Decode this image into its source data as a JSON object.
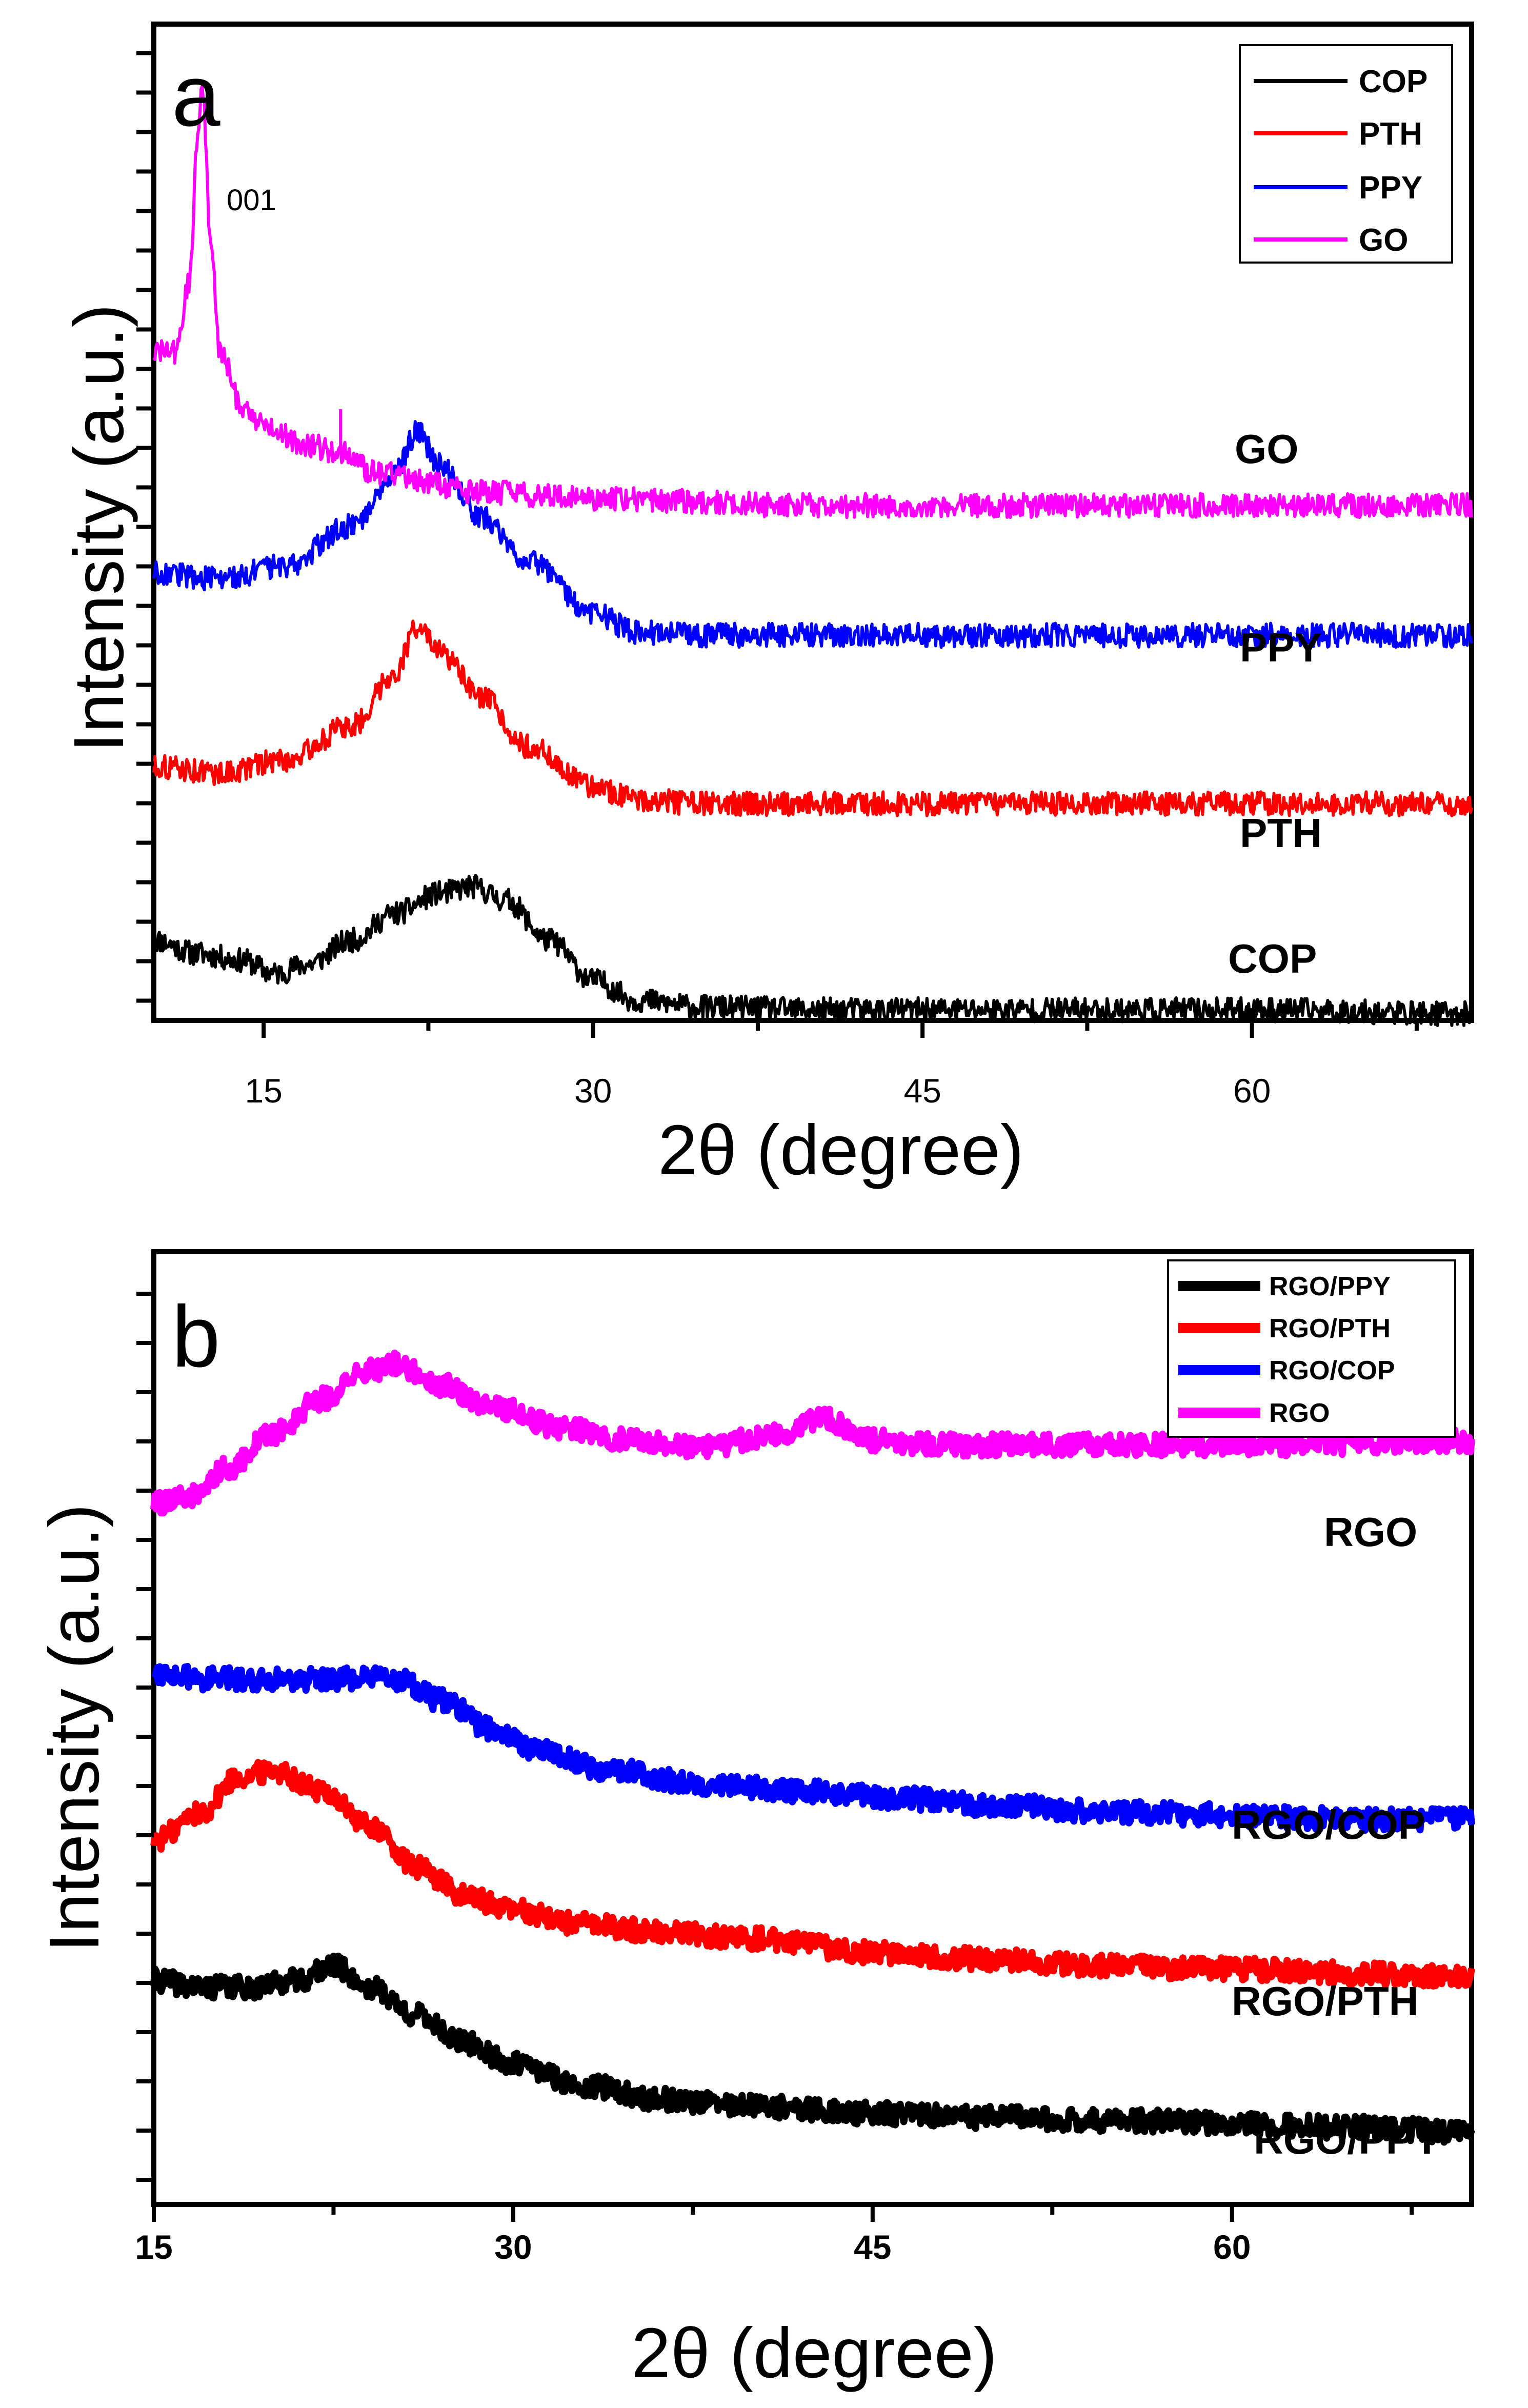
{
  "chart_data": [
    {
      "panel": "a",
      "type": "line",
      "xlabel": "2θ (degree)",
      "ylabel": "Intensity (a.u.)",
      "xlim": [
        10,
        70
      ],
      "xticks": [
        15,
        30,
        45,
        60
      ],
      "xtick_labels": [
        "15",
        "30",
        "45",
        "60"
      ],
      "legend_position": "top-right",
      "annotation": {
        "text": "001",
        "x": 12.1
      },
      "series": [
        {
          "name": "COP",
          "color": "#000000",
          "label": "COP",
          "x": [
            10,
            12,
            14,
            15.5,
            17,
            19,
            21,
            23,
            24.5,
            26,
            28,
            30,
            32,
            35,
            40,
            50,
            60,
            70
          ],
          "y": [
            0.6,
            0.5,
            0.45,
            0.35,
            0.42,
            0.6,
            0.8,
            0.95,
            1.0,
            0.9,
            0.6,
            0.3,
            0.15,
            0.1,
            0.08,
            0.08,
            0.08,
            0.05
          ]
        },
        {
          "name": "PTH",
          "color": "#ff0000",
          "label": "PTH",
          "x": [
            10,
            13,
            16,
            19,
            21,
            22,
            23,
            25,
            27,
            30,
            32,
            35,
            40,
            50,
            60,
            70
          ],
          "y": [
            1.9,
            1.85,
            1.95,
            2.2,
            2.6,
            2.95,
            2.75,
            2.4,
            2.05,
            1.75,
            1.65,
            1.62,
            1.62,
            1.62,
            1.62,
            1.62
          ]
        },
        {
          "name": "PPY",
          "color": "#0000ff",
          "label": "PPY",
          "x": [
            10,
            13,
            16,
            19,
            21,
            22,
            23,
            25,
            27,
            30,
            32,
            35,
            40,
            50,
            60,
            70
          ],
          "y": [
            3.35,
            3.3,
            3.4,
            3.7,
            4.1,
            4.4,
            4.15,
            3.75,
            3.45,
            3.05,
            2.9,
            2.88,
            2.88,
            2.88,
            2.88,
            2.88
          ]
        },
        {
          "name": "GO",
          "color": "#ff00ff",
          "label": "GO",
          "x": [
            10,
            11,
            11.6,
            12.0,
            12.2,
            12.6,
            13,
            14,
            15,
            17,
            18.5,
            20,
            25,
            30,
            40,
            50,
            60,
            70
          ],
          "y": [
            5.0,
            5.0,
            5.5,
            6.6,
            7.0,
            5.8,
            5.0,
            4.6,
            4.45,
            4.3,
            4.25,
            4.1,
            3.95,
            3.9,
            3.85,
            3.85,
            3.85,
            3.85
          ]
        }
      ]
    },
    {
      "panel": "b",
      "type": "line",
      "xlabel": "2θ (degree)",
      "ylabel": "Intensity (a.u.)",
      "xlim": [
        15,
        70
      ],
      "xticks": [
        15,
        30,
        45,
        60
      ],
      "xtick_labels": [
        "15",
        "30",
        "45",
        "60"
      ],
      "legend_position": "top-right",
      "series": [
        {
          "name": "RGO/PPY",
          "color": "#000000",
          "label": "RGO/PPY",
          "x": [
            15,
            17,
            19,
            21,
            22.5,
            24,
            26,
            28,
            30,
            33,
            36,
            40,
            45,
            50,
            55,
            60,
            65,
            70
          ],
          "y": [
            2.8,
            2.75,
            2.75,
            2.8,
            2.9,
            2.75,
            2.55,
            2.35,
            2.2,
            2.05,
            1.95,
            1.9,
            1.85,
            1.82,
            1.8,
            1.78,
            1.75,
            1.72
          ]
        },
        {
          "name": "RGO/PTH",
          "color": "#ff0000",
          "label": "RGO/PTH",
          "x": [
            15,
            17,
            18.5,
            20,
            22,
            24,
            26,
            28,
            30,
            33,
            36,
            40,
            45,
            50,
            55,
            60,
            65,
            70
          ],
          "y": [
            3.8,
            4.0,
            4.25,
            4.3,
            4.15,
            3.9,
            3.6,
            3.4,
            3.3,
            3.2,
            3.15,
            3.1,
            3.0,
            2.95,
            2.9,
            2.88,
            2.85,
            2.82
          ]
        },
        {
          "name": "RGO/COP",
          "color": "#0000ff",
          "label": "RGO/COP",
          "x": [
            15,
            17,
            19,
            21,
            23,
            25,
            27,
            29,
            31,
            34,
            38,
            42,
            46,
            50,
            55,
            60,
            65,
            70
          ],
          "y": [
            5.0,
            4.95,
            4.95,
            4.95,
            4.95,
            4.95,
            4.8,
            4.6,
            4.45,
            4.3,
            4.2,
            4.15,
            4.1,
            4.05,
            4.0,
            3.98,
            3.95,
            3.95
          ]
        },
        {
          "name": "RGO",
          "color": "#ff00ff",
          "label": "RGO",
          "x": [
            15,
            16.5,
            18,
            20,
            22,
            24,
            25,
            27,
            29,
            32,
            35,
            38,
            41,
            43,
            45,
            48,
            52,
            60,
            70
          ],
          "y": [
            6.2,
            6.25,
            6.45,
            6.7,
            6.95,
            7.15,
            7.2,
            7.05,
            6.9,
            6.75,
            6.65,
            6.6,
            6.7,
            6.8,
            6.65,
            6.62,
            6.62,
            6.62,
            6.65
          ]
        }
      ]
    }
  ]
}
